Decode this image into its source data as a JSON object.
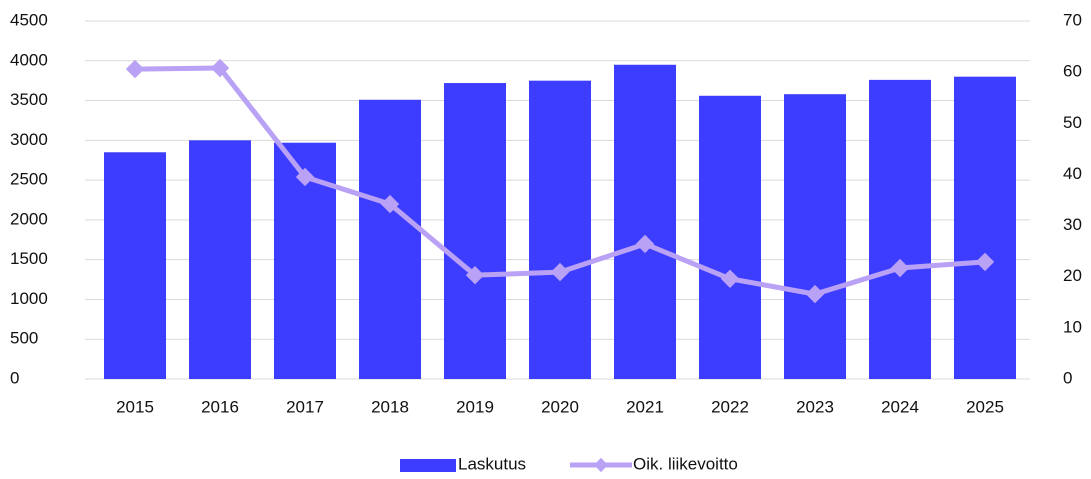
{
  "chart_data": {
    "type": "bar_line",
    "categories": [
      "2015",
      "2016",
      "2017",
      "2018",
      "2019",
      "2020",
      "2021",
      "2022",
      "2023",
      "2024",
      "2025"
    ],
    "series": [
      {
        "name": "Laskutus",
        "color": "#3d3dff",
        "type": "bar",
        "values": [
          2850,
          3000,
          2970,
          3510,
          3720,
          3750,
          3950,
          3560,
          3580,
          3760,
          3800
        ]
      },
      {
        "name": "Oik. liikevoitto",
        "color": "#b9a1f5",
        "type": "line",
        "axis": "y2",
        "values": [
          60.6,
          60.8,
          39.5,
          34.2,
          20.3,
          20.9,
          26.4,
          19.6,
          16.6,
          21.7,
          22.9
        ]
      }
    ],
    "ylim": [
      0,
      4500
    ],
    "yticks": [
      0,
      500,
      1000,
      1500,
      2000,
      2500,
      3000,
      3500,
      4000,
      4500
    ],
    "y2lim": [
      0,
      70
    ],
    "y2ticks": [
      0,
      10,
      20,
      30,
      40,
      50,
      60,
      70
    ],
    "grid": true,
    "legend": "bottom"
  }
}
